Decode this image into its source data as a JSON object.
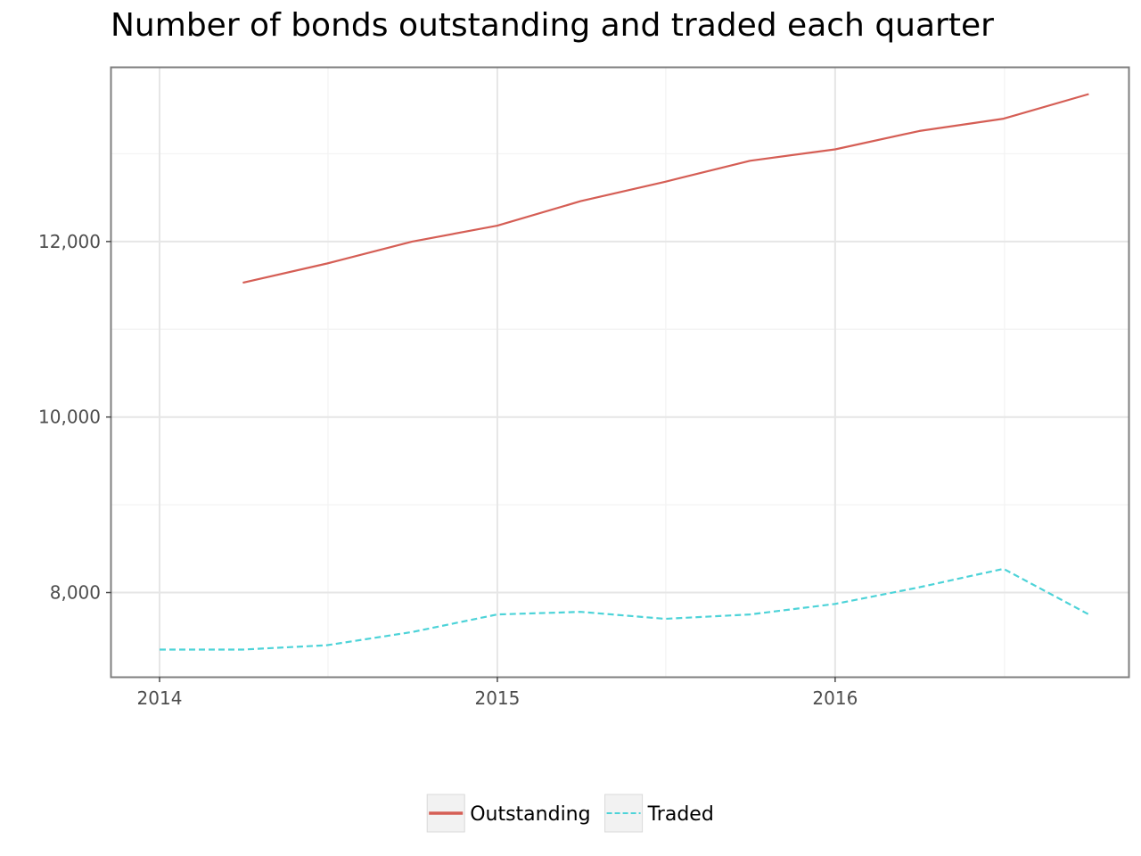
{
  "chart_data": {
    "type": "line",
    "title": "Number of bonds outstanding and traded each quarter",
    "xlabel": "",
    "ylabel": "",
    "x_axis_kind": "date",
    "xlim": [
      "2013-11-10",
      "2016-11-13"
    ],
    "ylim": [
      7040,
      13980
    ],
    "x_ticks": [
      {
        "value": "2014-01-01",
        "label": "2014"
      },
      {
        "value": "2015-01-01",
        "label": "2015"
      },
      {
        "value": "2016-01-01",
        "label": "2016"
      }
    ],
    "y_ticks": [
      {
        "value": 8000,
        "label": "8,000"
      },
      {
        "value": 10000,
        "label": "10,000"
      },
      {
        "value": 12000,
        "label": "12,000"
      }
    ],
    "grid": true,
    "legend_position": "bottom",
    "series": [
      {
        "name": "Outstanding",
        "color": "#d55e55",
        "dash": "solid",
        "x": [
          "2014-04-01",
          "2014-07-01",
          "2014-10-01",
          "2015-01-01",
          "2015-04-01",
          "2015-07-01",
          "2015-10-01",
          "2016-01-01",
          "2016-04-01",
          "2016-07-01",
          "2016-10-01"
        ],
        "values": [
          11530,
          11750,
          12000,
          12180,
          12460,
          12680,
          12920,
          13050,
          13260,
          13400,
          13680
        ]
      },
      {
        "name": "Traded",
        "color": "#4dd3d8",
        "dash": "dashed",
        "x": [
          "2014-01-01",
          "2014-04-01",
          "2014-07-01",
          "2014-10-01",
          "2015-01-01",
          "2015-04-01",
          "2015-07-01",
          "2015-10-01",
          "2016-01-01",
          "2016-04-01",
          "2016-07-01",
          "2016-10-01"
        ],
        "values": [
          7350,
          7350,
          7400,
          7550,
          7750,
          7780,
          7700,
          7750,
          7870,
          8060,
          8270,
          7750
        ]
      }
    ]
  }
}
